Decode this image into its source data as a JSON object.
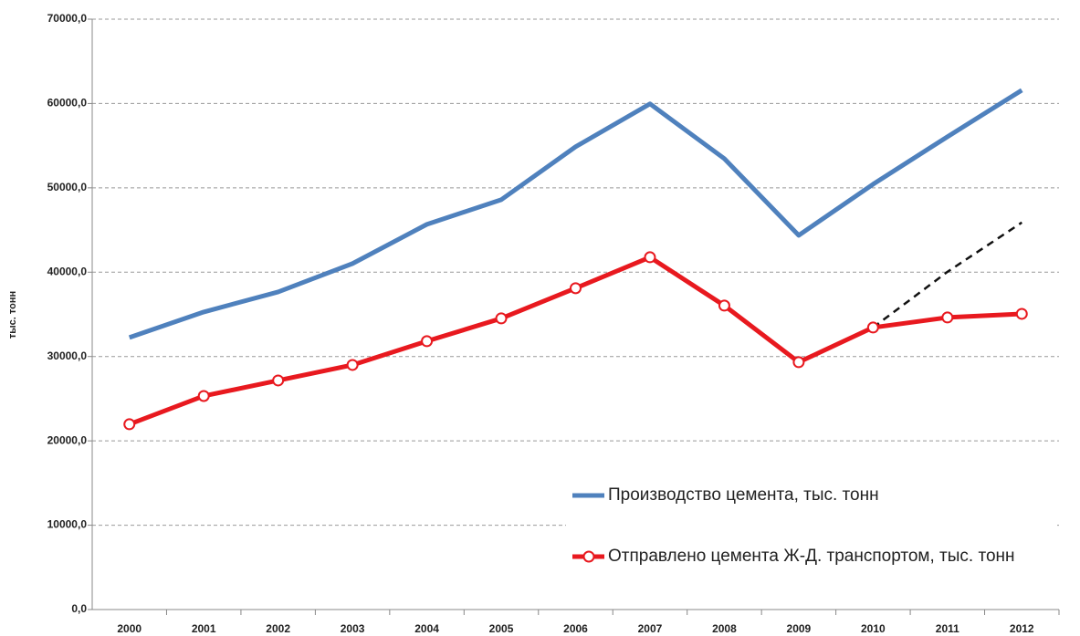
{
  "chart_data": {
    "type": "line",
    "y_label": "тыс. тонн",
    "categories": [
      "2000",
      "2001",
      "2002",
      "2003",
      "2004",
      "2005",
      "2006",
      "2007",
      "2008",
      "2009",
      "2010",
      "2011",
      "2012"
    ],
    "series": [
      {
        "name": "Производство цемента, тыс. тонн",
        "color": "#4f81bd",
        "marker": "none",
        "dash": false,
        "values": [
          32250,
          35280,
          37660,
          41020,
          45670,
          48590,
          54870,
          59960,
          53460,
          44370,
          50430,
          56060,
          61580
        ]
      },
      {
        "name": "Отправлено цемента Ж-Д. транспортом, тыс. тонн",
        "color": "#e8191f",
        "marker": "circle",
        "dash": false,
        "values": [
          21970,
          25320,
          27160,
          29000,
          31820,
          34520,
          38100,
          41770,
          36040,
          29330,
          33440,
          34630,
          35060
        ]
      },
      {
        "color": "#111111",
        "marker": "none",
        "dash": true,
        "values": [
          null,
          null,
          null,
          null,
          null,
          null,
          null,
          null,
          null,
          null,
          33440,
          40040,
          45890
        ]
      }
    ],
    "ylim": [
      0,
      70000
    ],
    "yticks": [
      {
        "value": 0,
        "label": "0,0"
      },
      {
        "value": 10000,
        "label": "10000,0"
      },
      {
        "value": 20000,
        "label": "20000,0"
      },
      {
        "value": 30000,
        "label": "30000,0"
      },
      {
        "value": 40000,
        "label": "40000,0"
      },
      {
        "value": 50000,
        "label": "50000,0"
      },
      {
        "value": 60000,
        "label": "60000,0"
      },
      {
        "value": 70000,
        "label": "70000,0"
      }
    ],
    "grid": true,
    "legend": "lower right"
  }
}
